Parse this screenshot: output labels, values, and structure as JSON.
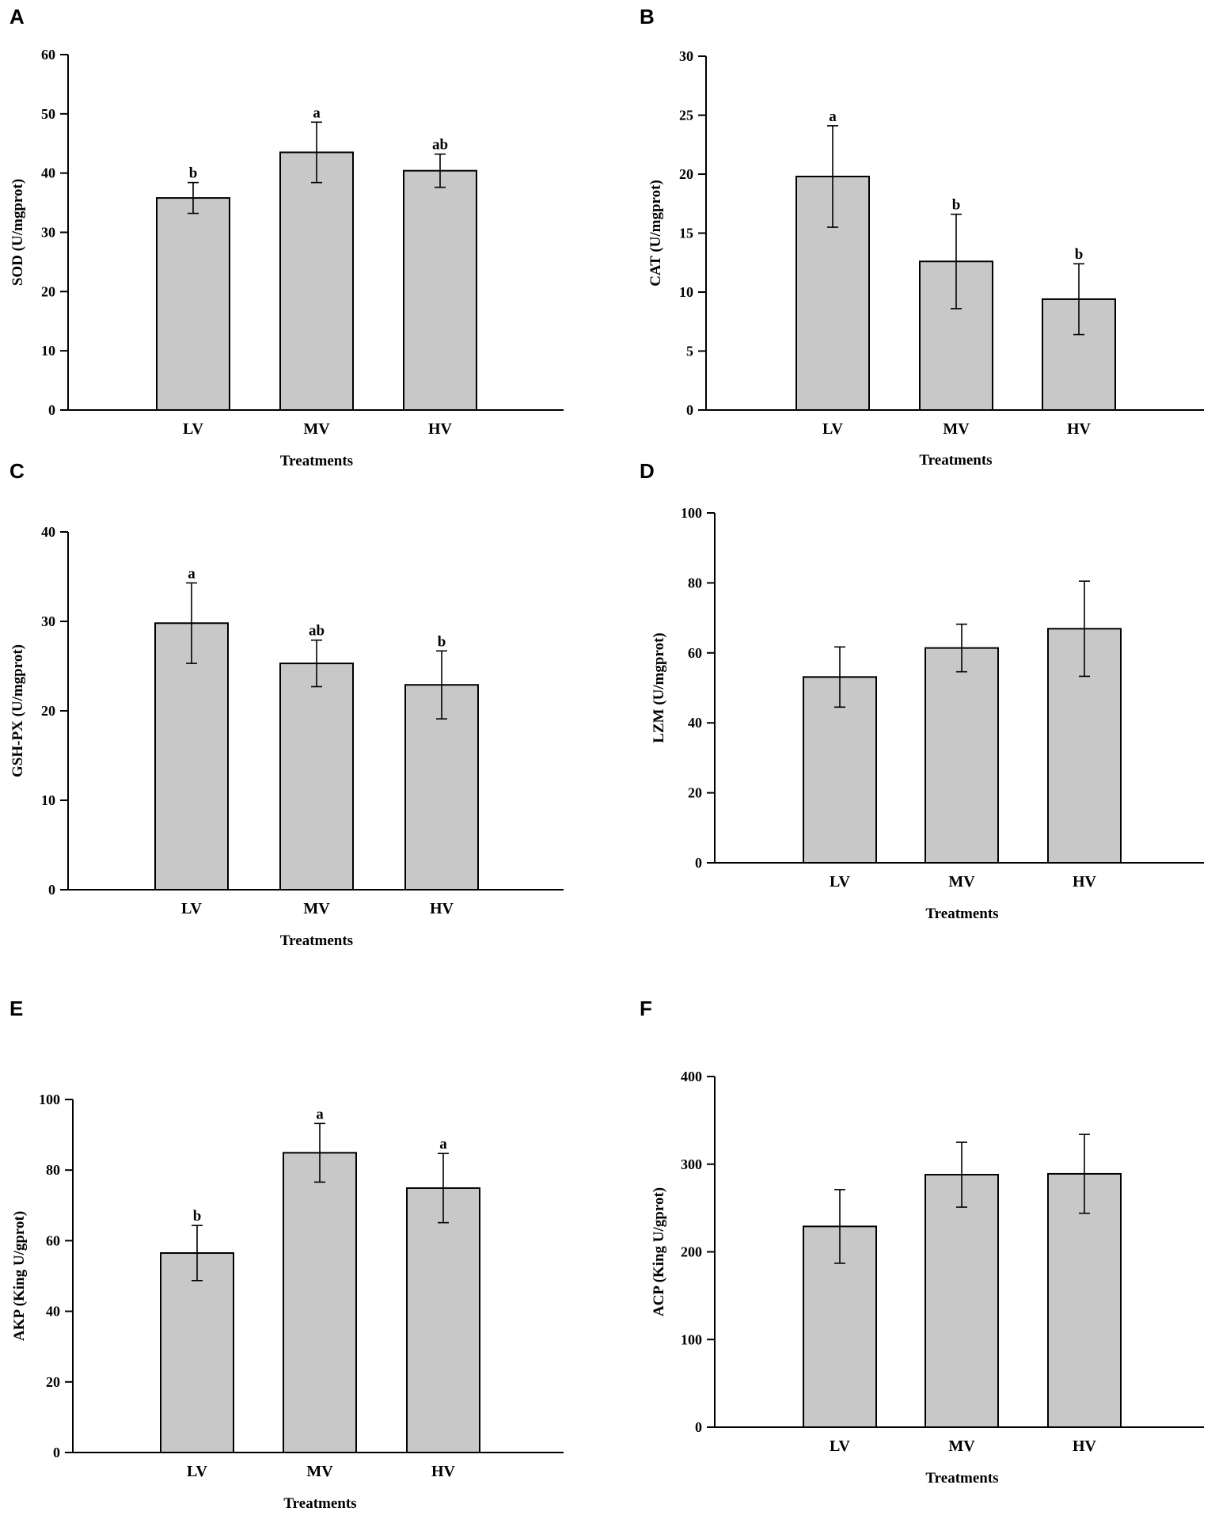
{
  "chart_data": [
    {
      "panel": "A",
      "type": "bar",
      "categories": [
        "LV",
        "MV",
        "HV"
      ],
      "values": [
        35.8,
        43.5,
        40.4
      ],
      "errors": [
        2.6,
        5.1,
        2.8
      ],
      "significance": [
        "b",
        "a",
        "ab"
      ],
      "xlabel": "Treatments",
      "ylabel": "SOD (U/mgprot)",
      "ylim": [
        0,
        60
      ],
      "yticks": [
        0,
        10,
        20,
        30,
        40,
        50,
        60
      ]
    },
    {
      "panel": "B",
      "type": "bar",
      "categories": [
        "LV",
        "MV",
        "HV"
      ],
      "values": [
        19.8,
        12.6,
        9.4
      ],
      "errors": [
        4.3,
        4.0,
        3.0
      ],
      "significance": [
        "a",
        "b",
        "b"
      ],
      "xlabel": "Treatments",
      "ylabel": "CAT (U/mgprot)",
      "ylim": [
        0,
        30
      ],
      "yticks": [
        0,
        5,
        10,
        15,
        20,
        25,
        30
      ]
    },
    {
      "panel": "C",
      "type": "bar",
      "categories": [
        "LV",
        "MV",
        "HV"
      ],
      "values": [
        29.8,
        25.3,
        22.9
      ],
      "errors": [
        4.5,
        2.6,
        3.8
      ],
      "significance": [
        "a",
        "ab",
        "b"
      ],
      "xlabel": "Treatments",
      "ylabel": "GSH-PX (U/mgprot)",
      "ylim": [
        0,
        40
      ],
      "yticks": [
        0,
        10,
        20,
        30,
        40
      ]
    },
    {
      "panel": "D",
      "type": "bar",
      "categories": [
        "LV",
        "MV",
        "HV"
      ],
      "values": [
        53.1,
        61.4,
        66.9
      ],
      "errors": [
        8.6,
        6.8,
        13.6
      ],
      "significance": [
        "",
        "",
        ""
      ],
      "xlabel": "Treatments",
      "ylabel": "LZM (U/mgprot)",
      "ylim": [
        0,
        100
      ],
      "yticks": [
        0,
        20,
        40,
        60,
        80,
        100
      ]
    },
    {
      "panel": "E",
      "type": "bar",
      "categories": [
        "LV",
        "MV",
        "HV"
      ],
      "values": [
        56.5,
        84.9,
        74.9
      ],
      "errors": [
        7.8,
        8.3,
        9.8
      ],
      "significance": [
        "b",
        "a",
        "a"
      ],
      "xlabel": "Treatments",
      "ylabel": "AKP (King U/gprot)",
      "ylim": [
        0,
        100
      ],
      "yticks": [
        0,
        20,
        40,
        60,
        80,
        100
      ]
    },
    {
      "panel": "F",
      "type": "bar",
      "categories": [
        "LV",
        "MV",
        "HV"
      ],
      "values": [
        229,
        288,
        289
      ],
      "errors": [
        42,
        37,
        45
      ],
      "significance": [
        "",
        "",
        ""
      ],
      "xlabel": "Treatments",
      "ylabel": "ACP (King U/gprot)",
      "ylim": [
        0,
        400
      ],
      "yticks": [
        0,
        100,
        200,
        300,
        400
      ]
    }
  ],
  "colors": {
    "bar_fill": "#c8c8c8",
    "outline": "#000000",
    "background": "#ffffff"
  }
}
